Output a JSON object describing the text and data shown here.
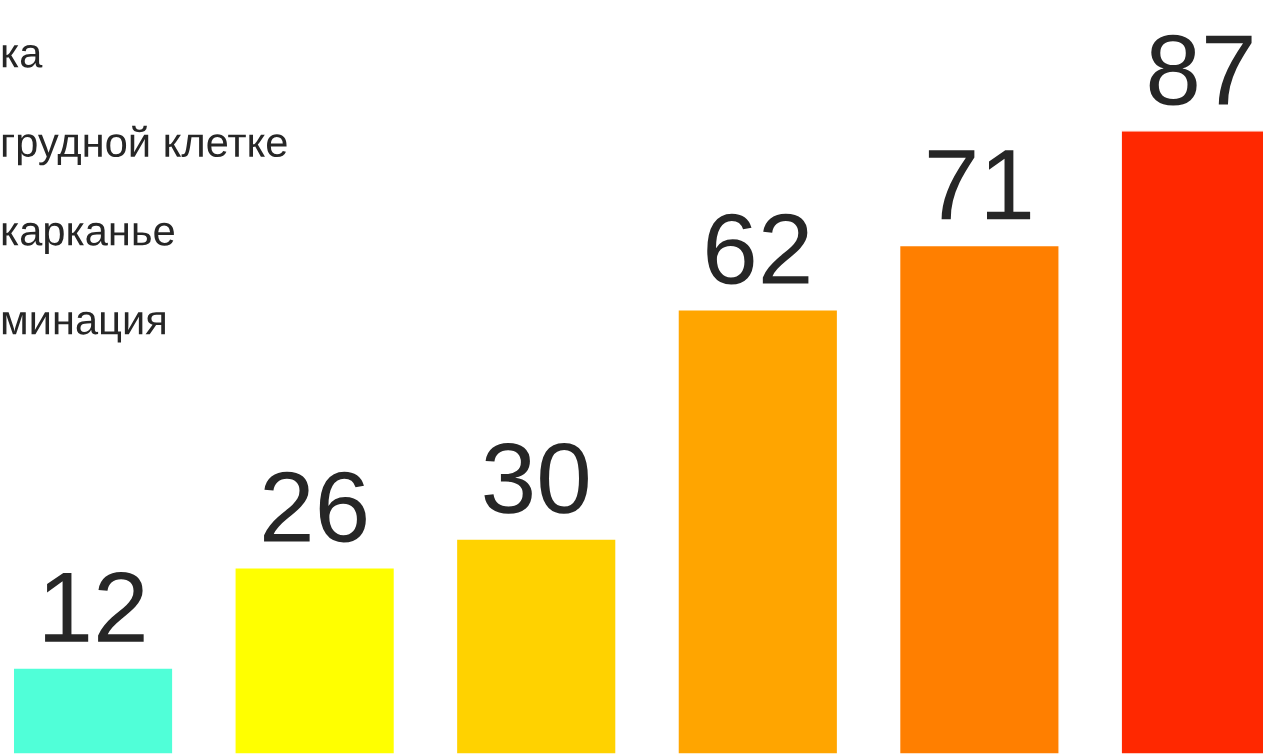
{
  "chart_data": {
    "type": "bar",
    "categories": [
      null,
      null,
      null,
      null,
      null,
      null
    ],
    "values": [
      12,
      26,
      30,
      62,
      71,
      87
    ],
    "colors": [
      "#50ffd8",
      "#ffff00",
      "#ffd200",
      "#ffa500",
      "#ff7f00",
      "#ff2800"
    ],
    "data_labels": true,
    "annotations": [
      "ка",
      "грудной клетке",
      "карканье",
      "минация"
    ]
  }
}
